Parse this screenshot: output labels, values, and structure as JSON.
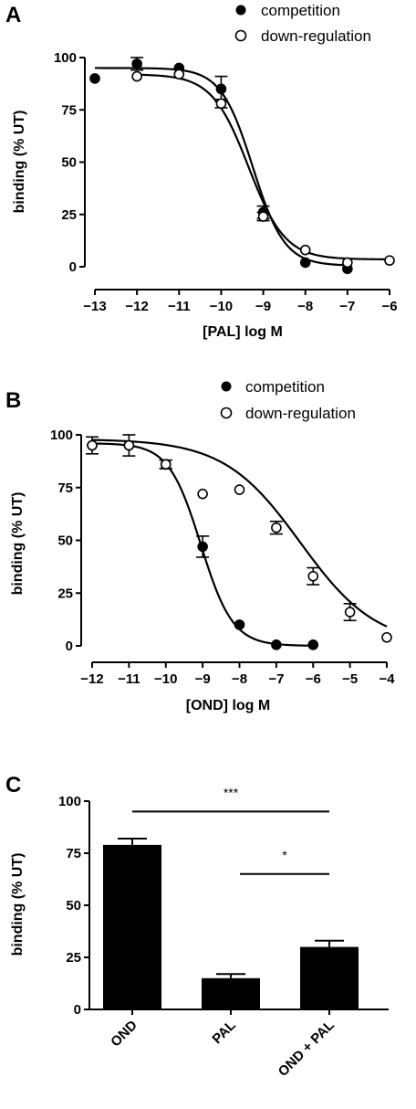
{
  "chart_data": [
    {
      "panel": "A",
      "type": "scatter",
      "xlabel": "[PAL] log M",
      "ylabel": "binding (% UT)",
      "xlim": [
        -13,
        -6
      ],
      "ylim": [
        0,
        100
      ],
      "xticks": [
        -13,
        -12,
        -11,
        -10,
        -9,
        -8,
        -7,
        -6
      ],
      "yticks": [
        0,
        25,
        50,
        75,
        100
      ],
      "legend_position": "top-right",
      "series": [
        {
          "name": "competition",
          "marker": "filled-circle",
          "points": [
            {
              "x": -13,
              "y": 90,
              "err": 0
            },
            {
              "x": -12,
              "y": 97,
              "err": 3
            },
            {
              "x": -11,
              "y": 95,
              "err": 0
            },
            {
              "x": -10,
              "y": 85,
              "err": 6
            },
            {
              "x": -9,
              "y": 26,
              "err": 3
            },
            {
              "x": -8,
              "y": 2,
              "err": 0
            },
            {
              "x": -7,
              "y": -1,
              "err": 0
            }
          ],
          "fit": {
            "top": 95,
            "bottom": 0.5,
            "logEC50": -9.25,
            "hill": 1.15,
            "xrange": [
              -13,
              -7
            ]
          }
        },
        {
          "name": "down-regulation",
          "marker": "open-circle",
          "points": [
            {
              "x": -12,
              "y": 91,
              "err": 0
            },
            {
              "x": -11,
              "y": 92,
              "err": 0
            },
            {
              "x": -10,
              "y": 78,
              "err": 2
            },
            {
              "x": -9,
              "y": 24,
              "err": 2
            },
            {
              "x": -8,
              "y": 8,
              "err": 0
            },
            {
              "x": -7,
              "y": 2,
              "err": 0
            },
            {
              "x": -6,
              "y": 3,
              "err": 0
            }
          ],
          "fit": {
            "top": 92,
            "bottom": 3.5,
            "logEC50": -9.35,
            "hill": 1.0,
            "xrange": [
              -12,
              -6
            ]
          }
        }
      ]
    },
    {
      "panel": "B",
      "type": "scatter",
      "xlabel": "[OND] log M",
      "ylabel": "binding (% UT)",
      "xlim": [
        -12,
        -4
      ],
      "ylim": [
        0,
        100
      ],
      "xticks": [
        -12,
        -11,
        -10,
        -9,
        -8,
        -7,
        -6,
        -5,
        -4
      ],
      "yticks": [
        0,
        25,
        50,
        75,
        100
      ],
      "legend_position": "top-right",
      "series": [
        {
          "name": "competition",
          "marker": "filled-circle",
          "points": [
            {
              "x": -12,
              "y": 95,
              "err": 4
            },
            {
              "x": -11,
              "y": 95,
              "err": 5
            },
            {
              "x": -10,
              "y": 86,
              "err": 2
            },
            {
              "x": -9,
              "y": 47,
              "err": 5
            },
            {
              "x": -8,
              "y": 10,
              "err": 0
            },
            {
              "x": -7,
              "y": 0.5,
              "err": 0
            },
            {
              "x": -6,
              "y": 0.5,
              "err": 0
            }
          ],
          "fit": {
            "top": 96,
            "bottom": 0,
            "logEC50": -9.05,
            "hill": 1.0,
            "xrange": [
              -12,
              -6
            ]
          }
        },
        {
          "name": "down-regulation",
          "marker": "open-circle",
          "points": [
            {
              "x": -12,
              "y": 95,
              "err": 0
            },
            {
              "x": -11,
              "y": 95,
              "err": 0
            },
            {
              "x": -10,
              "y": 86,
              "err": 2
            },
            {
              "x": -9,
              "y": 72,
              "err": 0
            },
            {
              "x": -8,
              "y": 74,
              "err": 0
            },
            {
              "x": -7,
              "y": 56,
              "err": 3
            },
            {
              "x": -6,
              "y": 33,
              "err": 4
            },
            {
              "x": -5,
              "y": 16,
              "err": 4
            },
            {
              "x": -4,
              "y": 4,
              "err": 0
            }
          ],
          "fit": {
            "top": 98,
            "bottom": 0,
            "logEC50": -6.35,
            "hill": 0.42,
            "xrange": [
              -12,
              -4
            ]
          }
        }
      ]
    },
    {
      "panel": "C",
      "type": "bar",
      "ylabel": "binding (% UT)",
      "ylim": [
        0,
        100
      ],
      "yticks": [
        0,
        25,
        50,
        75,
        100
      ],
      "categories": [
        "OND",
        "PAL",
        "OND + PAL"
      ],
      "values": [
        79,
        15,
        30
      ],
      "errors": [
        3,
        2,
        3
      ],
      "bar_color": "#000000",
      "significance": [
        {
          "from": 0,
          "to": 2,
          "label": "***",
          "y": 95
        },
        {
          "from": 1,
          "to": 2,
          "label": "*",
          "y": 65
        }
      ]
    }
  ]
}
